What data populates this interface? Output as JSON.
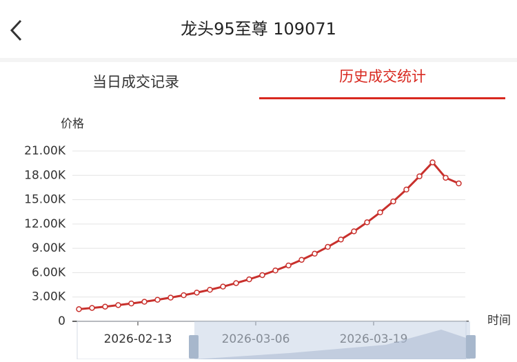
{
  "header": {
    "title": "龙头95至尊 109071"
  },
  "tabs": [
    "当日成交记录",
    "历史成交统计"
  ],
  "chart_data": {
    "type": "line",
    "y_label": "价格",
    "x_label": "时间",
    "categories": [
      null,
      null,
      null,
      null,
      null,
      "2026-02-13",
      null,
      null,
      null,
      null,
      null,
      null,
      null,
      null,
      "2026-03-06",
      null,
      null,
      null,
      null,
      null,
      null,
      null,
      null,
      "2026-03-19",
      null,
      null,
      null,
      null,
      null,
      null
    ],
    "series": [
      {
        "name": "价格",
        "color": "#c8302c",
        "values": [
          1500,
          1650,
          1810,
          2000,
          2200,
          2410,
          2660,
          2920,
          3220,
          3540,
          3890,
          4280,
          4710,
          5180,
          5700,
          6270,
          6890,
          7580,
          8340,
          9180,
          10090,
          11100,
          12210,
          13430,
          14780,
          16250,
          17880,
          19600,
          17700,
          17000
        ]
      }
    ],
    "ylim": [
      0,
      21000
    ],
    "yticks": [
      0,
      {
        "value": 3000,
        "label": "3.00K"
      },
      {
        "value": 6000,
        "label": "6.00K"
      },
      {
        "value": 9000,
        "label": "9.00K"
      },
      {
        "value": 12000,
        "label": "12.00K"
      },
      {
        "value": 15000,
        "label": "15.00K"
      },
      {
        "value": 18000,
        "label": "18.00K"
      },
      {
        "value": 21000,
        "label": "21.00K"
      }
    ],
    "grid": true
  }
}
